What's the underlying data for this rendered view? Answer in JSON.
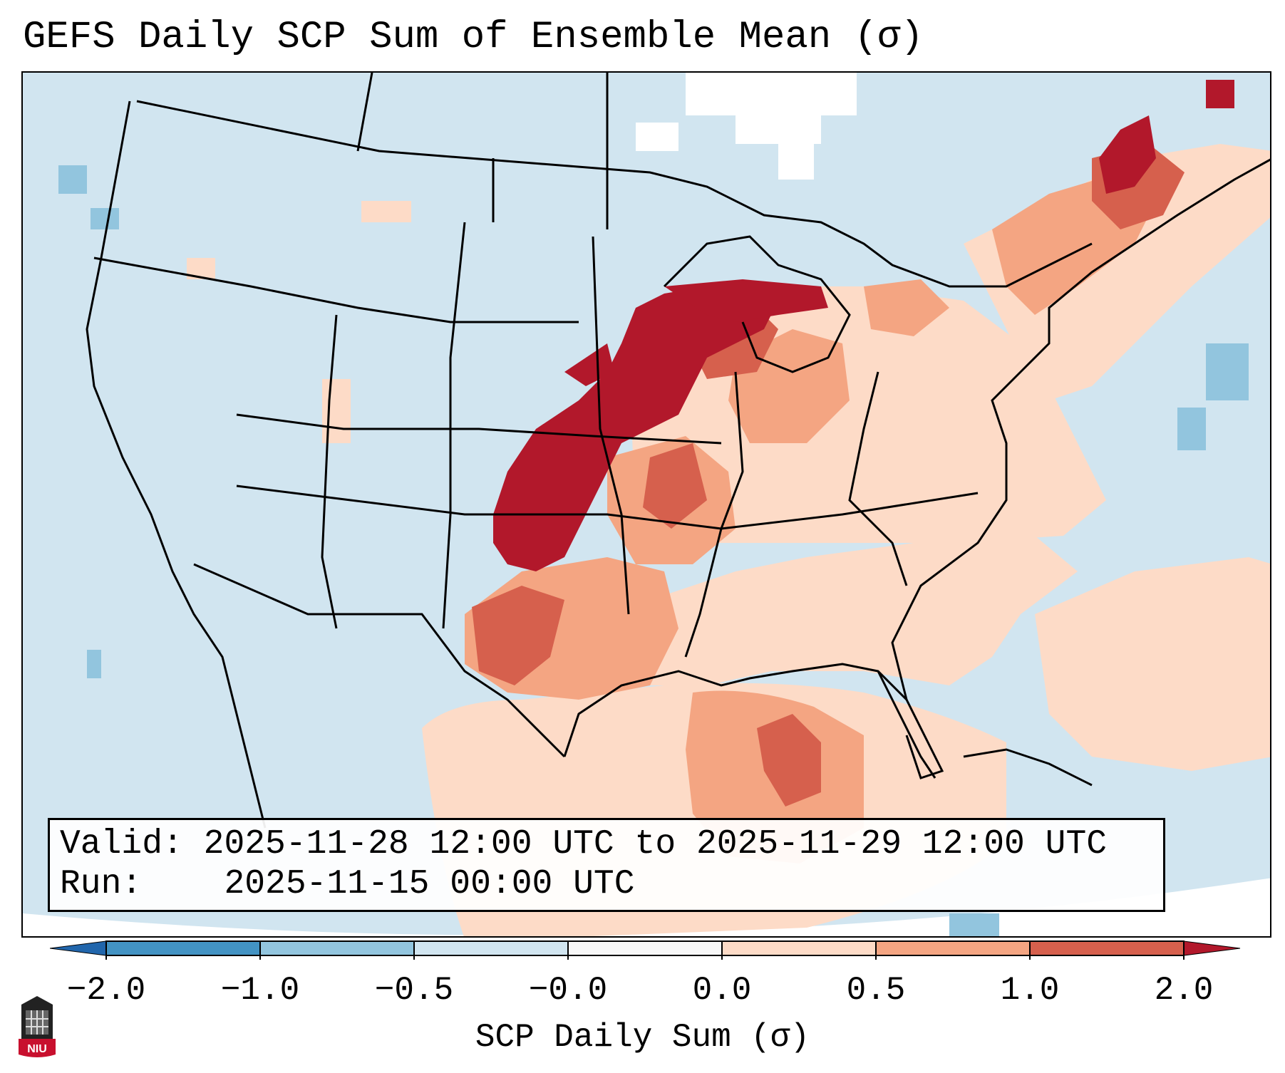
{
  "title": "GEFS Daily SCP Sum of Ensemble Mean (σ)",
  "info": {
    "valid_label": "Valid:",
    "valid_value": "2025-11-28 12:00 UTC to 2025-11-29 12:00 UTC",
    "run_label": "Run:",
    "run_value": "2025-11-15 00:00 UTC"
  },
  "colorbar": {
    "label": "SCP Daily Sum (σ)",
    "ticks": [
      "−2.0",
      "−1.0",
      "−0.5",
      "−0.0",
      "0.0",
      "0.5",
      "1.0",
      "2.0"
    ],
    "colors": [
      "#4393c3",
      "#92c5de",
      "#d1e5f0",
      "#f7f7f7",
      "#fddbc7",
      "#f4a582",
      "#d6604d"
    ],
    "extend_low": "#2166ac",
    "extend_high": "#b2182b"
  },
  "logo": {
    "text": "NIU",
    "name": "niu-logo"
  },
  "map": {
    "background_color": "#d1e5f0",
    "regions": [
      {
        "name": "gulf-of-mexico-positive",
        "level": "light-red"
      },
      {
        "name": "southeast-positive",
        "level": "light-red"
      },
      {
        "name": "midwest-positive",
        "level": "medium-red"
      },
      {
        "name": "plains-max",
        "level": "dark-red"
      },
      {
        "name": "upper-midwest-max",
        "level": "dark-red"
      },
      {
        "name": "quebec-positive",
        "level": "medium-red"
      },
      {
        "name": "west-atlantic-positive",
        "level": "light-red"
      }
    ]
  }
}
